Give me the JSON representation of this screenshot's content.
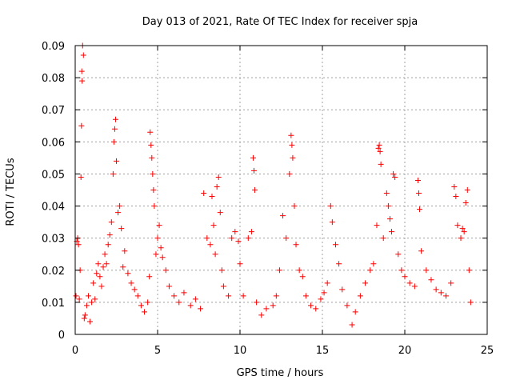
{
  "chart_data": {
    "type": "scatter",
    "title": "Day 013 of 2021, Rate Of TEC Index for receiver spja",
    "xlabel": "GPS time / hours",
    "ylabel": "ROTI / TECUs",
    "xlim": [
      0,
      25
    ],
    "ylim": [
      0,
      0.09
    ],
    "x_ticks": [
      "0",
      "5",
      "10",
      "15",
      "20",
      "25"
    ],
    "y_ticks": [
      "0",
      "0.01",
      "0.02",
      "0.03",
      "0.04",
      "0.05",
      "0.06",
      "0.07",
      "0.08",
      "0.09"
    ],
    "grid": true,
    "marker": "+",
    "color": "#ff0000",
    "series": [
      {
        "values_xy": [
          [
            0.05,
            0.012
          ],
          [
            0.1,
            0.029
          ],
          [
            0.15,
            0.03
          ],
          [
            0.2,
            0.028
          ],
          [
            0.25,
            0.011
          ],
          [
            0.3,
            0.02
          ],
          [
            0.35,
            0.049
          ],
          [
            0.38,
            0.065
          ],
          [
            0.4,
            0.082
          ],
          [
            0.42,
            0.079
          ],
          [
            0.45,
            0.09
          ],
          [
            0.5,
            0.087
          ],
          [
            0.55,
            0.005
          ],
          [
            0.6,
            0.006
          ],
          [
            0.7,
            0.009
          ],
          [
            0.8,
            0.012
          ],
          [
            0.9,
            0.004
          ],
          [
            1.0,
            0.01
          ],
          [
            1.1,
            0.016
          ],
          [
            1.2,
            0.011
          ],
          [
            1.3,
            0.019
          ],
          [
            1.4,
            0.022
          ],
          [
            1.5,
            0.018
          ],
          [
            1.6,
            0.015
          ],
          [
            1.7,
            0.021
          ],
          [
            1.8,
            0.025
          ],
          [
            1.9,
            0.022
          ],
          [
            2.0,
            0.028
          ],
          [
            2.1,
            0.031
          ],
          [
            2.2,
            0.035
          ],
          [
            2.3,
            0.05
          ],
          [
            2.35,
            0.06
          ],
          [
            2.4,
            0.064
          ],
          [
            2.45,
            0.067
          ],
          [
            2.5,
            0.054
          ],
          [
            2.6,
            0.038
          ],
          [
            2.7,
            0.04
          ],
          [
            2.8,
            0.033
          ],
          [
            2.9,
            0.021
          ],
          [
            3.0,
            0.026
          ],
          [
            3.2,
            0.019
          ],
          [
            3.4,
            0.016
          ],
          [
            3.6,
            0.014
          ],
          [
            3.8,
            0.012
          ],
          [
            4.0,
            0.009
          ],
          [
            4.2,
            0.007
          ],
          [
            4.4,
            0.01
          ],
          [
            4.5,
            0.018
          ],
          [
            4.55,
            0.063
          ],
          [
            4.6,
            0.059
          ],
          [
            4.65,
            0.055
          ],
          [
            4.7,
            0.05
          ],
          [
            4.75,
            0.045
          ],
          [
            4.8,
            0.04
          ],
          [
            4.9,
            0.025
          ],
          [
            5.0,
            0.03
          ],
          [
            5.1,
            0.034
          ],
          [
            5.2,
            0.027
          ],
          [
            5.3,
            0.024
          ],
          [
            5.5,
            0.02
          ],
          [
            5.7,
            0.015
          ],
          [
            6.0,
            0.012
          ],
          [
            6.3,
            0.01
          ],
          [
            6.6,
            0.013
          ],
          [
            7.0,
            0.009
          ],
          [
            7.3,
            0.011
          ],
          [
            7.6,
            0.008
          ],
          [
            7.8,
            0.044
          ],
          [
            8.0,
            0.03
          ],
          [
            8.2,
            0.028
          ],
          [
            8.3,
            0.043
          ],
          [
            8.4,
            0.034
          ],
          [
            8.5,
            0.025
          ],
          [
            8.6,
            0.046
          ],
          [
            8.7,
            0.049
          ],
          [
            8.8,
            0.038
          ],
          [
            8.9,
            0.02
          ],
          [
            9.0,
            0.015
          ],
          [
            9.3,
            0.012
          ],
          [
            9.5,
            0.03
          ],
          [
            9.7,
            0.032
          ],
          [
            9.9,
            0.029
          ],
          [
            10.0,
            0.022
          ],
          [
            10.2,
            0.012
          ],
          [
            10.5,
            0.03
          ],
          [
            10.7,
            0.032
          ],
          [
            10.8,
            0.055
          ],
          [
            10.85,
            0.051
          ],
          [
            10.9,
            0.045
          ],
          [
            11.0,
            0.01
          ],
          [
            11.3,
            0.006
          ],
          [
            11.6,
            0.008
          ],
          [
            12.0,
            0.009
          ],
          [
            12.2,
            0.012
          ],
          [
            12.4,
            0.02
          ],
          [
            12.6,
            0.037
          ],
          [
            12.8,
            0.03
          ],
          [
            13.0,
            0.05
          ],
          [
            13.1,
            0.062
          ],
          [
            13.15,
            0.059
          ],
          [
            13.2,
            0.055
          ],
          [
            13.3,
            0.04
          ],
          [
            13.4,
            0.028
          ],
          [
            13.6,
            0.02
          ],
          [
            13.8,
            0.018
          ],
          [
            14.0,
            0.012
          ],
          [
            14.3,
            0.009
          ],
          [
            14.6,
            0.008
          ],
          [
            14.9,
            0.011
          ],
          [
            15.1,
            0.013
          ],
          [
            15.3,
            0.016
          ],
          [
            15.5,
            0.04
          ],
          [
            15.6,
            0.035
          ],
          [
            15.8,
            0.028
          ],
          [
            16.0,
            0.022
          ],
          [
            16.2,
            0.014
          ],
          [
            16.5,
            0.009
          ],
          [
            16.8,
            0.003
          ],
          [
            17.0,
            0.007
          ],
          [
            17.3,
            0.012
          ],
          [
            17.6,
            0.016
          ],
          [
            17.9,
            0.02
          ],
          [
            18.1,
            0.022
          ],
          [
            18.3,
            0.034
          ],
          [
            18.4,
            0.058
          ],
          [
            18.45,
            0.059
          ],
          [
            18.5,
            0.057
          ],
          [
            18.55,
            0.053
          ],
          [
            18.7,
            0.03
          ],
          [
            18.9,
            0.044
          ],
          [
            19.0,
            0.04
          ],
          [
            19.1,
            0.036
          ],
          [
            19.2,
            0.032
          ],
          [
            19.3,
            0.05
          ],
          [
            19.4,
            0.049
          ],
          [
            19.6,
            0.025
          ],
          [
            19.8,
            0.02
          ],
          [
            20.0,
            0.018
          ],
          [
            20.3,
            0.016
          ],
          [
            20.6,
            0.015
          ],
          [
            20.8,
            0.048
          ],
          [
            20.85,
            0.044
          ],
          [
            20.9,
            0.039
          ],
          [
            21.0,
            0.026
          ],
          [
            21.3,
            0.02
          ],
          [
            21.6,
            0.017
          ],
          [
            21.9,
            0.014
          ],
          [
            22.2,
            0.013
          ],
          [
            22.5,
            0.012
          ],
          [
            22.8,
            0.016
          ],
          [
            23.0,
            0.046
          ],
          [
            23.1,
            0.043
          ],
          [
            23.2,
            0.034
          ],
          [
            23.4,
            0.03
          ],
          [
            23.5,
            0.033
          ],
          [
            23.6,
            0.032
          ],
          [
            23.7,
            0.041
          ],
          [
            23.8,
            0.045
          ],
          [
            23.9,
            0.02
          ],
          [
            24.0,
            0.01
          ]
        ]
      }
    ]
  }
}
